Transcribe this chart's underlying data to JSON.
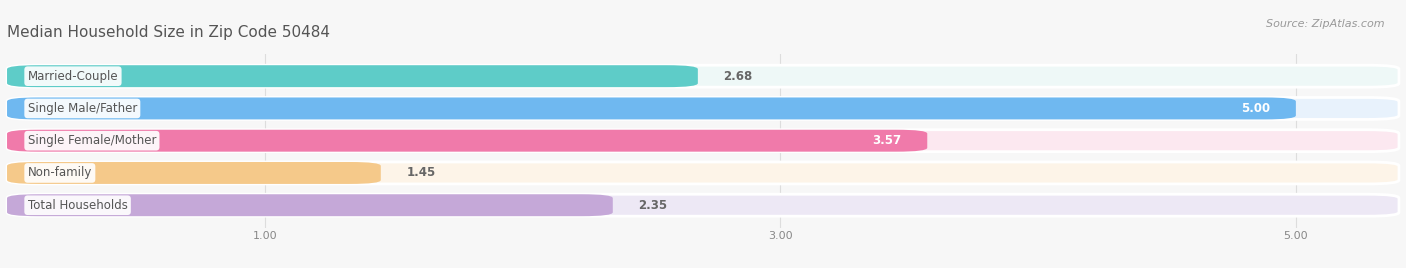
{
  "title": "Median Household Size in Zip Code 50484",
  "source": "Source: ZipAtlas.com",
  "categories": [
    "Married-Couple",
    "Single Male/Father",
    "Single Female/Mother",
    "Non-family",
    "Total Households"
  ],
  "values": [
    2.68,
    5.0,
    3.57,
    1.45,
    2.35
  ],
  "bar_colors": [
    "#5eccc8",
    "#6fb8f0",
    "#f07aaa",
    "#f5c98a",
    "#c5a8d8"
  ],
  "bar_bg_colors": [
    "#eef8f7",
    "#e8f2fc",
    "#fce8f0",
    "#fdf4e8",
    "#ede8f5"
  ],
  "value_label_colors": [
    "#666666",
    "#ffffff",
    "#ffffff",
    "#666666",
    "#666666"
  ],
  "value_label_inside": [
    false,
    true,
    true,
    false,
    false
  ],
  "xlim": [
    0,
    5.4
  ],
  "xticks": [
    1.0,
    3.0,
    5.0
  ],
  "xtick_labels": [
    "1.00",
    "3.00",
    "5.00"
  ],
  "bar_height": 0.68,
  "bar_gap": 0.32,
  "title_fontsize": 11,
  "label_fontsize": 8.5,
  "value_fontsize": 8.5,
  "source_fontsize": 8,
  "background_color": "#f7f7f7",
  "white": "#ffffff",
  "label_text_color": "#555555"
}
